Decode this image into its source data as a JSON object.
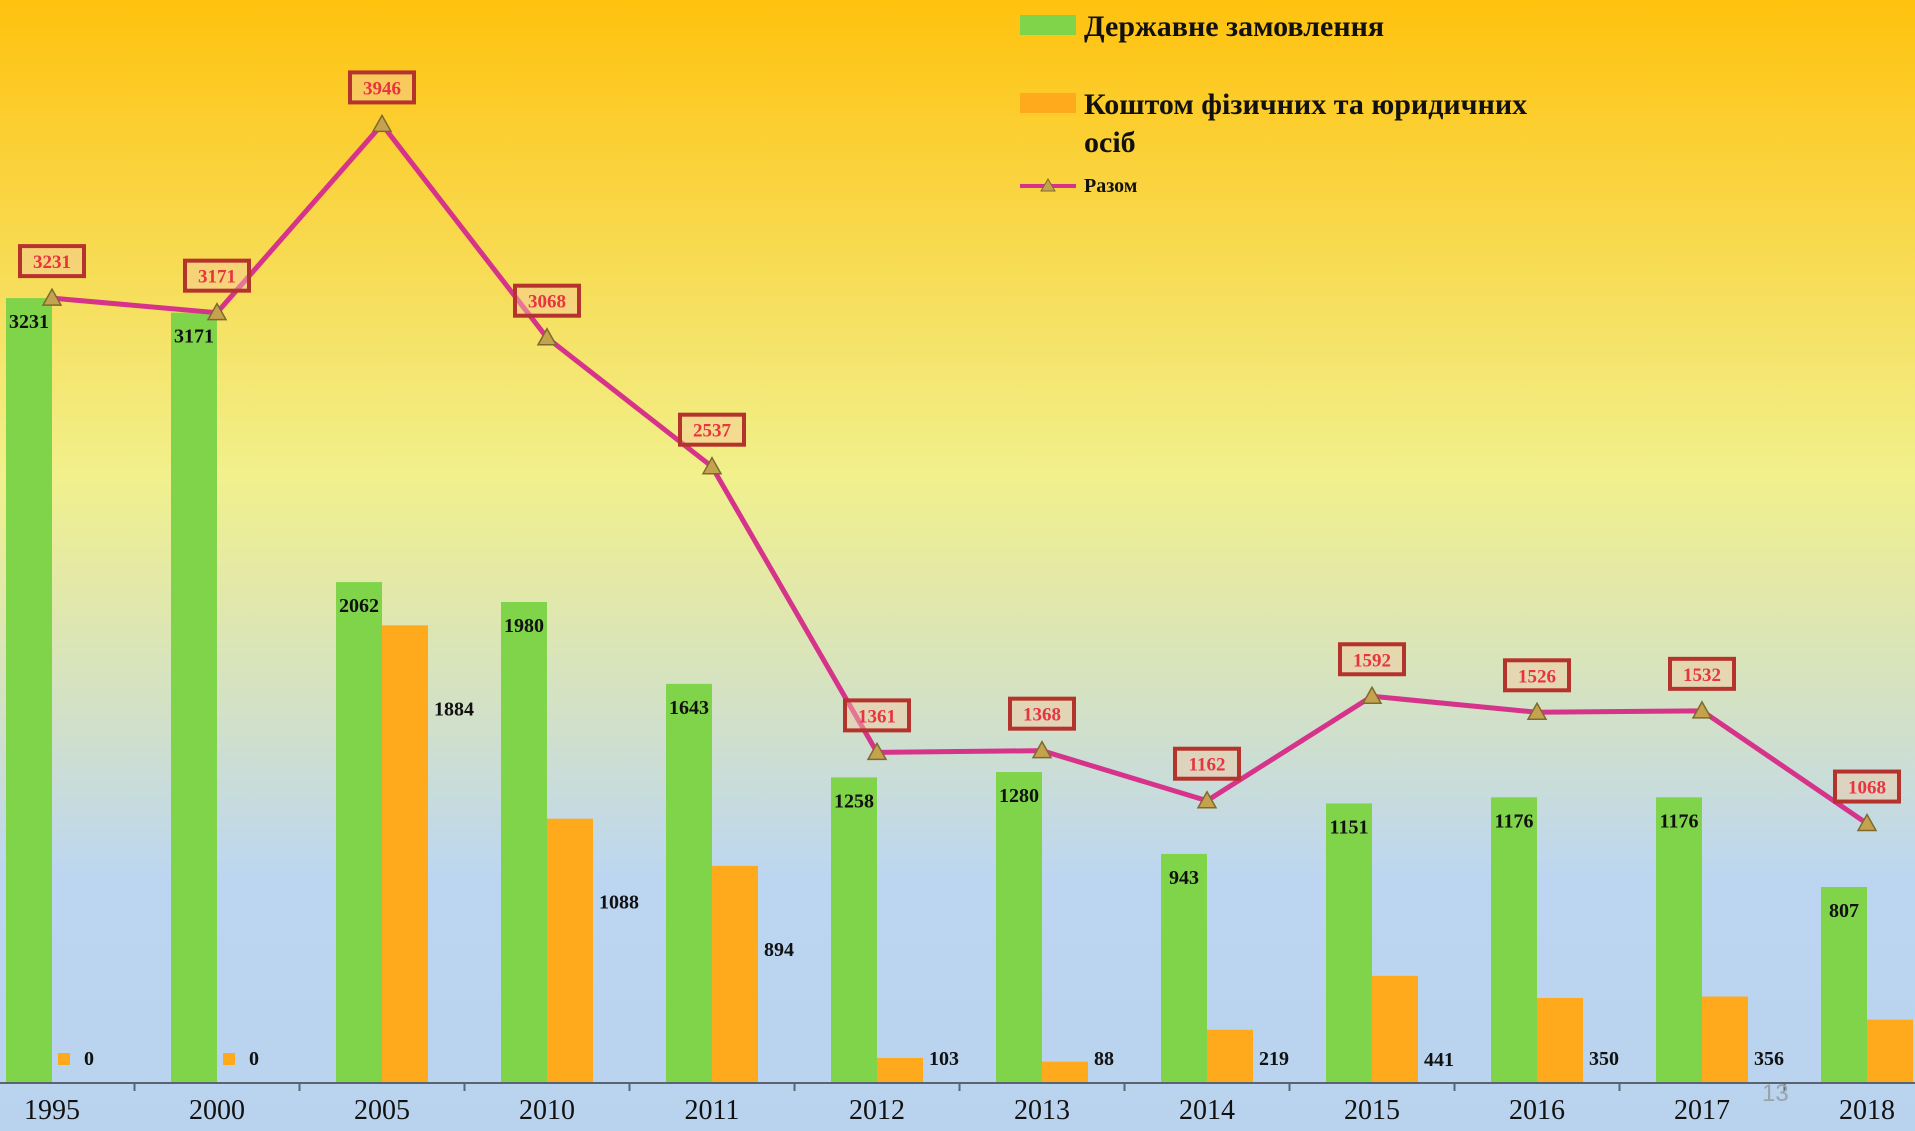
{
  "chart_data": {
    "type": "bar",
    "categories": [
      "1995",
      "2000",
      "2005",
      "2010",
      "2011",
      "2012",
      "2013",
      "2014",
      "2015",
      "2016",
      "2017",
      "2018"
    ],
    "series": [
      {
        "name": "Державне замовлення",
        "type": "bar",
        "color": "#7fd44a",
        "values": [
          3231,
          3171,
          2062,
          1980,
          1643,
          1258,
          1280,
          943,
          1151,
          1176,
          1176,
          807
        ]
      },
      {
        "name": "Коштом фізичних та юридичних осіб",
        "type": "bar",
        "color": "#ffa91c",
        "values": [
          0,
          0,
          1884,
          1088,
          894,
          103,
          88,
          219,
          441,
          350,
          356,
          261
        ]
      },
      {
        "name": "Разом",
        "type": "line",
        "color": "#d6338b",
        "marker": "triangle",
        "values": [
          3231,
          3171,
          3946,
          3068,
          2537,
          1361,
          1368,
          1162,
          1592,
          1526,
          1532,
          1068
        ]
      }
    ],
    "ylim": [
      0,
      4100
    ],
    "grid": false,
    "legend_position": "top-center"
  },
  "page": {
    "number": "13"
  },
  "colors": {
    "background_top": "#ffc20e",
    "background_mid": "#f1f08c",
    "background_bottom": "#bcd6f2",
    "label_box_border": "#b5332d",
    "label_box_text": "#e8343f",
    "label_box_fill": "#f3c8a2"
  }
}
